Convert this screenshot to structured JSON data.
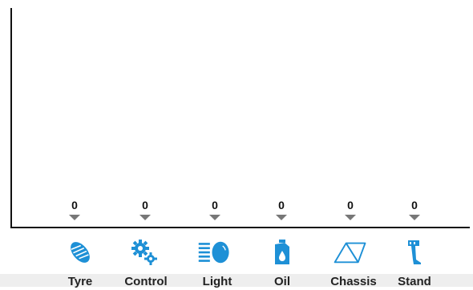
{
  "accent_color": "#1e90d6",
  "chart_data": {
    "type": "bar",
    "categories": [
      "Tyre",
      "Control",
      "Light",
      "Oil",
      "Chassis",
      "Stand"
    ],
    "values": [
      0,
      0,
      0,
      0,
      0,
      0
    ],
    "data_labels": [
      "0",
      "0",
      "0",
      "0",
      "0",
      "0"
    ]
  },
  "categories": [
    {
      "label": "Tyre",
      "icon": "tyre-icon"
    },
    {
      "label": "Control",
      "icon": "gears-icon"
    },
    {
      "label": "Light",
      "icon": "headlight-icon"
    },
    {
      "label": "Oil",
      "icon": "oil-can-icon"
    },
    {
      "label": "Chassis",
      "icon": "bike-frame-icon"
    },
    {
      "label": "Stand",
      "icon": "kickstand-icon"
    }
  ]
}
